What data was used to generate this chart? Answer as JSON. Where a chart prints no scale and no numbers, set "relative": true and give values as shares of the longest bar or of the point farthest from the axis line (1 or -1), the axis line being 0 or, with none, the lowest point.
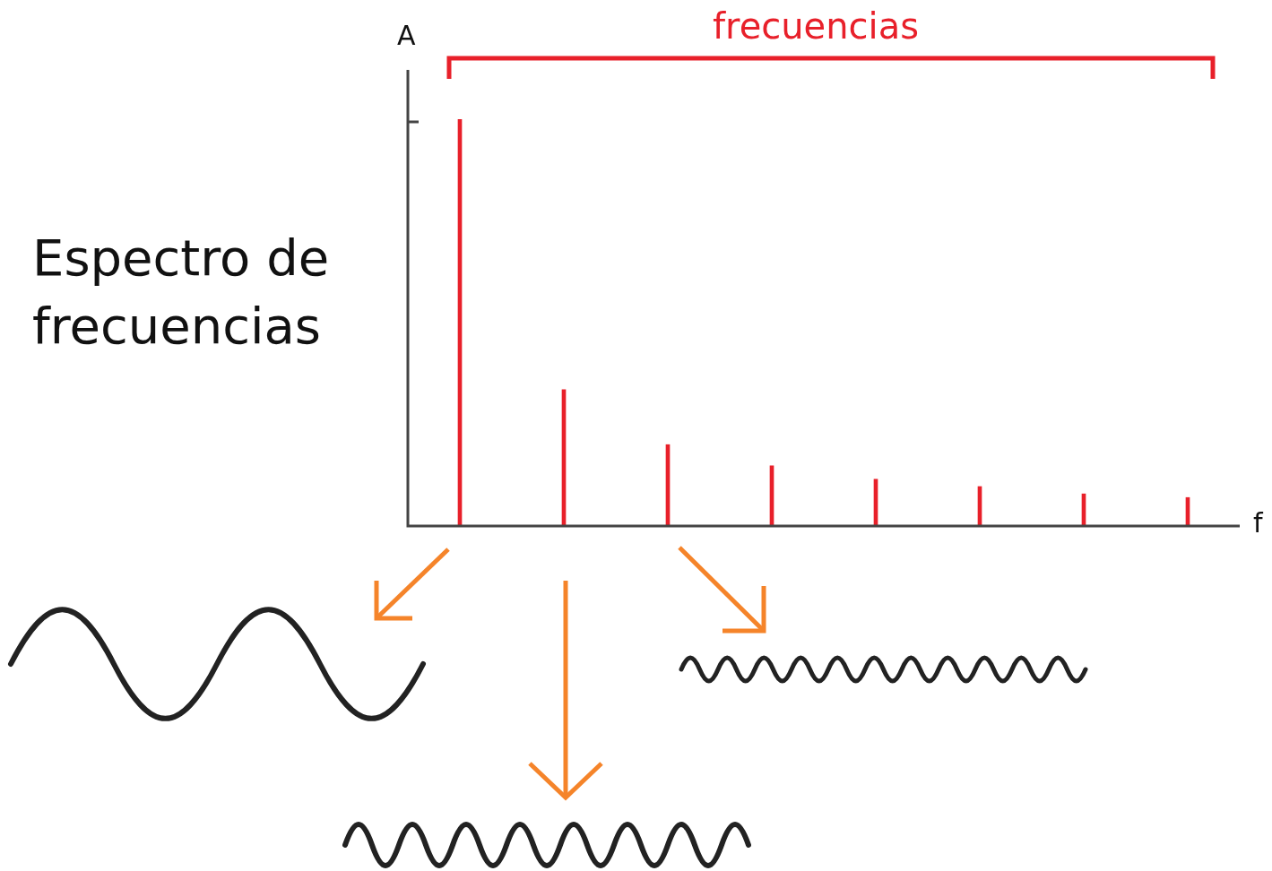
{
  "chart_data": {
    "type": "bar",
    "title": "Espectro de frecuencias",
    "xlabel": "f",
    "ylabel": "A",
    "annotations": [
      "frecuencias"
    ],
    "categories": [
      null,
      null,
      null,
      null,
      null,
      null,
      null,
      null
    ],
    "values": [
      1,
      0.335,
      0.2,
      0.148,
      0.115,
      0.097,
      0.079,
      0.07
    ],
    "color": "#e8202a",
    "relative": true,
    "legend": false
  }
}
